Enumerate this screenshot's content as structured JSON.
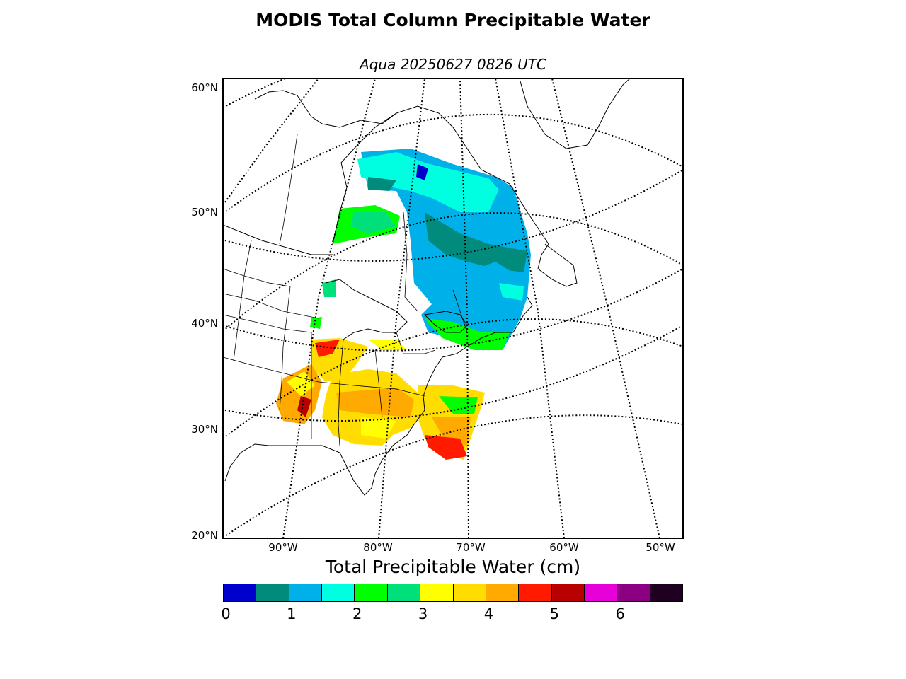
{
  "title": "MODIS Total Column Precipitable Water",
  "subtitle": "Aqua 20250627 0826 UTC",
  "map": {
    "lat_labels": [
      "60°N",
      "50°N",
      "40°N",
      "30°N",
      "20°N"
    ],
    "lon_labels": [
      "90°W",
      "80°W",
      "70°W",
      "60°W",
      "50°W"
    ]
  },
  "colorbar": {
    "title": "Total Precipitable Water (cm)",
    "colors": [
      "#0000cd",
      "#008b7d",
      "#00b0e8",
      "#00ffe0",
      "#00ff00",
      "#00e07a",
      "#ffff00",
      "#ffdd00",
      "#ffaa00",
      "#ff1a00",
      "#b80000",
      "#e800d8",
      "#8b0080",
      "#200020"
    ],
    "ticks": [
      "0",
      "1",
      "2",
      "3",
      "4",
      "5",
      "6"
    ]
  }
}
